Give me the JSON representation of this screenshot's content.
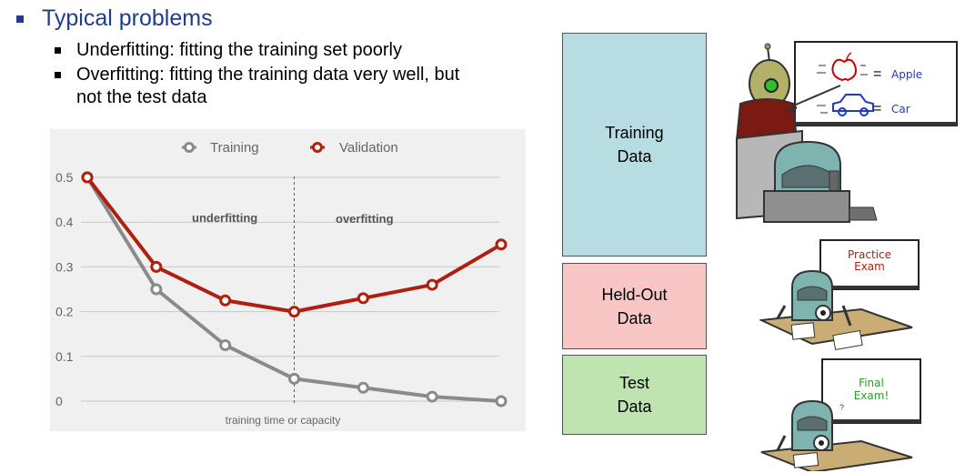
{
  "slide": {
    "heading": "Typical problems",
    "bullets": [
      "Underfitting: fitting the training set poorly",
      "Overfitting: fitting the training data very well, but",
      "not the test data"
    ]
  },
  "chart_data": {
    "type": "line",
    "x": [
      0,
      1,
      2,
      3,
      4,
      5,
      6
    ],
    "series": [
      {
        "name": "Training",
        "color": "#8a8a8a",
        "values": [
          0.5,
          0.25,
          0.125,
          0.05,
          0.03,
          0.01,
          0.0
        ]
      },
      {
        "name": "Validation",
        "color": "#b01e0e",
        "values": [
          0.5,
          0.3,
          0.225,
          0.2,
          0.23,
          0.26,
          0.35
        ]
      }
    ],
    "y_ticks": [
      "0.5",
      "0.4",
      "0.3",
      "0.2",
      "0.1",
      "0"
    ],
    "ylim": [
      0,
      0.5
    ],
    "xlabel": "training time or capacity",
    "annotations": {
      "left": "underfitting",
      "right": "overfitting"
    },
    "divider_x": 3,
    "legend": "top",
    "grid": true
  },
  "data_split": {
    "training": {
      "label": "Training\nData",
      "color": "#b7dde3"
    },
    "heldout": {
      "label": "Held-Out\nData",
      "color": "#f9c6c6"
    },
    "test": {
      "label": "Test\nData",
      "color": "#bfe4b0"
    }
  },
  "illustrations": {
    "teacher_board": {
      "apple_label": "Apple",
      "car_label": "Car",
      "equals": "="
    },
    "practice_board": {
      "line1": "Practice",
      "line2": "Exam"
    },
    "final_board": {
      "line1": "Final",
      "line2": "Exam!"
    }
  }
}
